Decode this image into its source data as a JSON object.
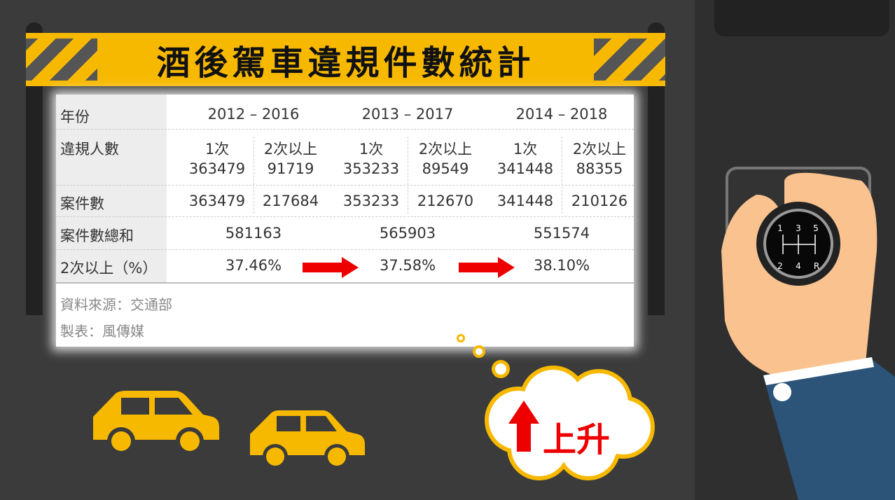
{
  "title": "酒後駕車違規件數統計",
  "table": {
    "row_labels": [
      "年份",
      "違規人數",
      "案件數",
      "案件數總和",
      "2次以上（%）"
    ],
    "periods": [
      "2012 – 2016",
      "2013 – 2017",
      "2014 – 2018"
    ],
    "sub_headers": [
      "1次",
      "2次以上",
      "1次",
      "2次以上",
      "1次",
      "2次以上"
    ],
    "violators": [
      "363479",
      "91719",
      "353233",
      "89549",
      "341448",
      "88355"
    ],
    "cases": [
      "363479",
      "217684",
      "353233",
      "212670",
      "341448",
      "210126"
    ],
    "case_totals": [
      "581163",
      "565903",
      "551574"
    ],
    "repeat_pct": [
      "37.46%",
      "37.58%",
      "38.10%"
    ]
  },
  "source": "資料來源：交通部",
  "maker": "製表：風傳媒",
  "bubble_text": "上升",
  "gear_labels": [
    "1",
    "3",
    "5",
    "2",
    "4",
    "R"
  ],
  "colors": {
    "accent_yellow": "#f7b900",
    "arrow_red": "#ee0000",
    "sleeve": "#2c5478",
    "skin": "#f9c28f"
  }
}
